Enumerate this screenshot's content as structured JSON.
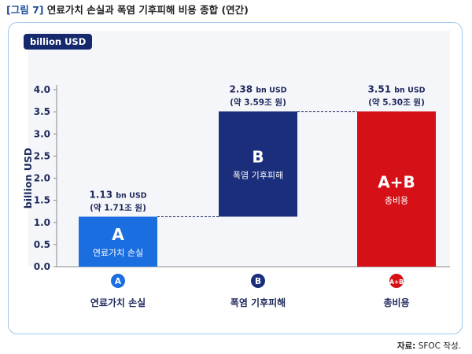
{
  "figure": {
    "number": "[그림 7]",
    "title": "연료가치 손실과 폭염 기후피해 비용 종합 (연간)"
  },
  "unit_badge": "billion USD",
  "source": {
    "label": "자료:",
    "text": "SFOC 작성."
  },
  "colors": {
    "bar_a": "#1a6ee0",
    "bar_b": "#1a2e7b",
    "bar_ab": "#d51017",
    "axis_text": "#1f2a5c",
    "connector": "#1f2a5c"
  },
  "chart_data": {
    "type": "bar",
    "subtype": "waterfall",
    "ylabel": "billion USD",
    "ylim": [
      0,
      4.0
    ],
    "yticks": [
      "0.0",
      "0.5",
      "1.0",
      "1.5",
      "2.0",
      "2.5",
      "3.0",
      "3.5",
      "4.0"
    ],
    "grid": false,
    "categories": [
      "연료가치 손실",
      "폭염 기후피해",
      "총비용"
    ],
    "bars": [
      {
        "letter": "A",
        "inner_label": "연료가치 손실",
        "start": 0,
        "end": 1.13,
        "value_main": "1.13",
        "value_unit": "bn USD",
        "value_krw": "(약 1.71조 원)",
        "circle": "A",
        "category": "연료가치 손실"
      },
      {
        "letter": "B",
        "inner_label": "폭염 기후피해",
        "start": 1.13,
        "end": 3.51,
        "value_main": "2.38",
        "value_unit": "bn USD",
        "value_krw": "(약 3.59조 원)",
        "circle": "B",
        "category": "폭염 기후피해"
      },
      {
        "letter": "A+B",
        "inner_label": "총비용",
        "start": 0,
        "end": 3.51,
        "value_main": "3.51",
        "value_unit": "bn USD",
        "value_krw": "(약 5.30조 원)",
        "circle": "A+B",
        "category": "총비용"
      }
    ]
  }
}
